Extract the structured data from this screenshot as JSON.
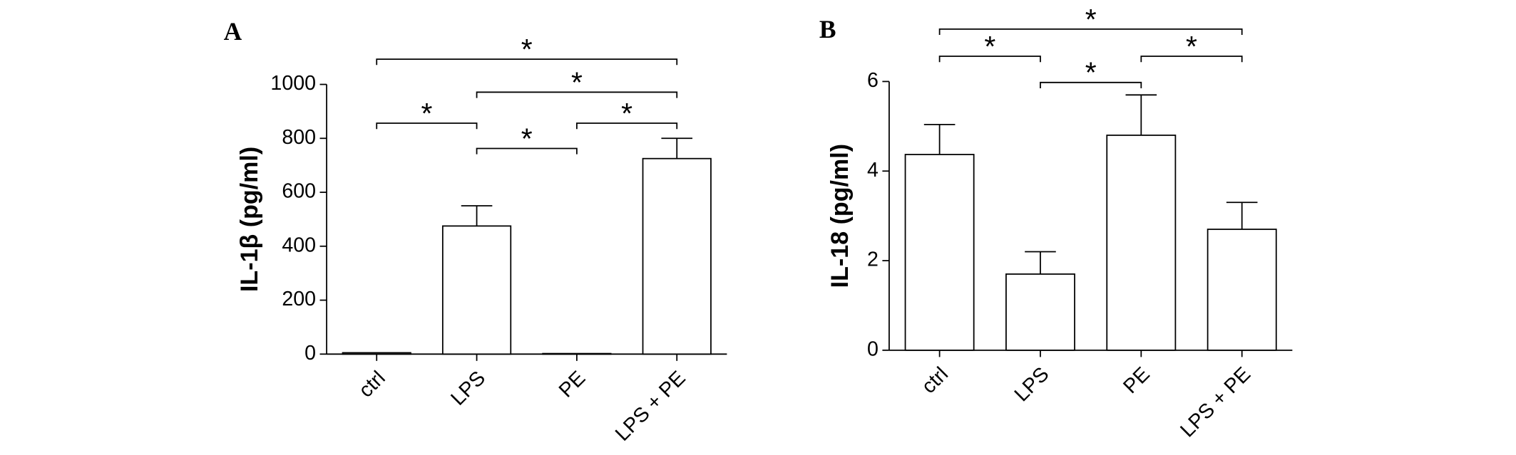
{
  "chart_data": [
    {
      "type": "bar",
      "panel_label": "A",
      "y_label": "IL-1β (pg/ml)",
      "categories": [
        "ctrl",
        "LPS",
        "PE",
        "LPS + PE"
      ],
      "values": [
        5,
        475,
        2,
        725
      ],
      "errors": [
        0,
        75,
        0,
        75
      ],
      "color": "#ffffff",
      "ylim": [
        0,
        1000
      ],
      "yticks": [
        0,
        200,
        400,
        600,
        800,
        1000
      ],
      "significance": [
        {
          "label": "*",
          "from": 0,
          "to": 1
        },
        {
          "label": "*",
          "from": 1,
          "to": 2
        },
        {
          "label": "*",
          "from": 2,
          "to": 3
        },
        {
          "label": "*",
          "from": 1,
          "to": 3
        },
        {
          "label": "*",
          "from": 0,
          "to": 3
        }
      ]
    },
    {
      "type": "bar",
      "panel_label": "B",
      "y_label": "IL-18 (pg/ml)",
      "categories": [
        "ctrl",
        "LPS",
        "PE",
        "LPS + PE"
      ],
      "values": [
        4.37,
        1.7,
        4.8,
        2.7
      ],
      "errors": [
        0.67,
        0.5,
        0.9,
        0.6
      ],
      "color": "#ffffff",
      "ylim": [
        0,
        6
      ],
      "yticks": [
        0,
        2,
        4,
        6
      ],
      "significance": [
        {
          "label": "*",
          "from": 0,
          "to": 1
        },
        {
          "label": "*",
          "from": 1,
          "to": 2
        },
        {
          "label": "*",
          "from": 2,
          "to": 3
        },
        {
          "label": "*",
          "from": 0,
          "to": 3
        }
      ]
    }
  ]
}
